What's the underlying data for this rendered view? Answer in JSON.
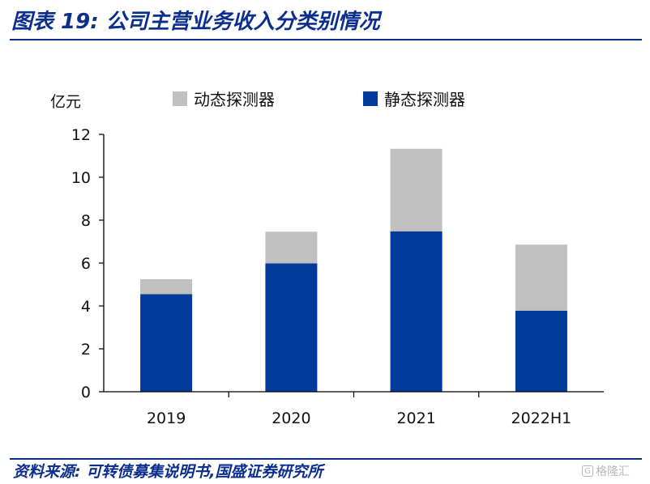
{
  "header": {
    "title": "图表 19:  公司主营业务收入分类别情况"
  },
  "footer": {
    "source": "资料来源:  可转债募集说明书,国盛证券研究所"
  },
  "watermark": {
    "icon": "G",
    "text": "格隆汇"
  },
  "colors": {
    "dynamic": "#c0c0c0",
    "static": "#003a9b",
    "accent": "#0b2f8f"
  },
  "chart_data": {
    "type": "bar",
    "stacked": true,
    "categories": [
      "2019",
      "2020",
      "2021",
      "2022H1"
    ],
    "series": [
      {
        "name": "静态探测器",
        "values": [
          4.55,
          5.98,
          7.48,
          3.78
        ]
      },
      {
        "name": "动态探测器",
        "values": [
          0.7,
          1.48,
          3.85,
          3.08
        ]
      }
    ],
    "ylabel": "亿元",
    "ylim": [
      0,
      12
    ],
    "yticks": [
      0,
      2,
      4,
      6,
      8,
      10,
      12
    ],
    "legend": "top",
    "grid": false
  }
}
